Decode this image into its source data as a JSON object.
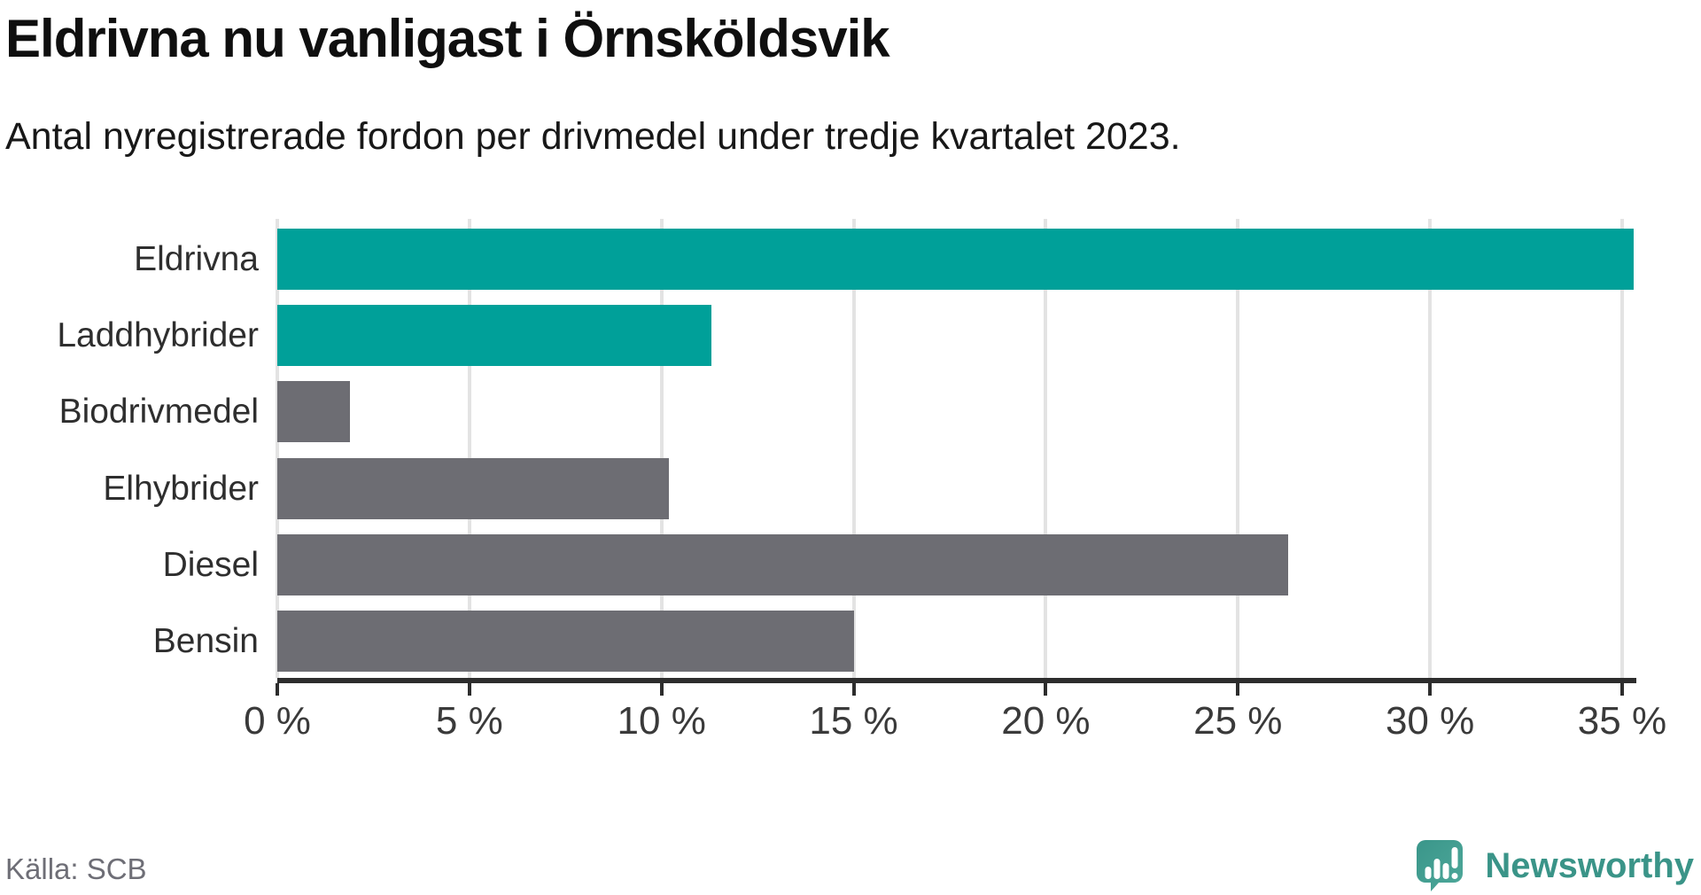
{
  "header": {
    "title": "Eldrivna nu vanligast i Örnsköldsvik",
    "subtitle": "Antal nyregistrerade fordon per drivmedel under tredje kvartalet 2023."
  },
  "chart_data": {
    "type": "bar",
    "orientation": "horizontal",
    "title": "Eldrivna nu vanligast i Örnsköldsvik",
    "subtitle": "Antal nyregistrerade fordon per drivmedel under tredje kvartalet 2023.",
    "categories": [
      "Eldrivna",
      "Laddhybrider",
      "Biodrivmedel",
      "Elhybrider",
      "Diesel",
      "Bensin"
    ],
    "values": [
      35.3,
      11.3,
      1.9,
      10.2,
      26.3,
      15.0
    ],
    "unit": "%",
    "bar_colors": [
      "#00a099",
      "#00a099",
      "#6d6d73",
      "#6d6d73",
      "#6d6d73",
      "#6d6d73"
    ],
    "xlim": [
      0,
      35.4
    ],
    "x_ticks": [
      0,
      5,
      10,
      15,
      20,
      25,
      30,
      35
    ],
    "x_tick_labels": [
      "0 %",
      "5 %",
      "10 %",
      "15 %",
      "20 %",
      "25 %",
      "30 %",
      "35 %"
    ],
    "grid": "vertical",
    "legend": "none"
  },
  "colors": {
    "highlight": "#00a099",
    "muted": "#6d6d73",
    "gridline": "#e3e3e3",
    "axis": "#2d2d2d",
    "brand_teal": "#3a9488",
    "icon_teal": "#43a094"
  },
  "footer": {
    "source": "Källa: SCB",
    "brand": "Newsworthy"
  }
}
